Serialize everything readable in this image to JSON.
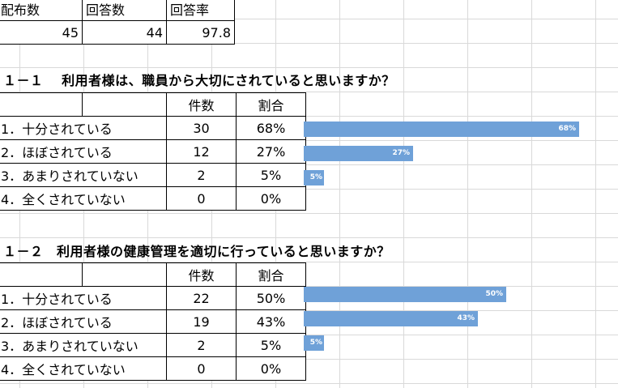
{
  "summary": {
    "headers": [
      "配布数",
      "回答数",
      "回答率"
    ],
    "values": [
      "45",
      "44",
      "97.8"
    ]
  },
  "questions": [
    {
      "title": "１－１　 利用者様は、職員から大切にされていると思いますか？",
      "col_count": "件数",
      "col_ratio": "割合",
      "rows": [
        {
          "label": "1．十分されている",
          "count": "30",
          "ratio": "68%"
        },
        {
          "label": "2．ほぼされている",
          "count": "12",
          "ratio": "27%"
        },
        {
          "label": "3．あまりされていない",
          "count": "2",
          "ratio": "5%"
        },
        {
          "label": "4．全くされていない",
          "count": "0",
          "ratio": "0%"
        }
      ]
    },
    {
      "title": "１－２　利用者様の健康管理を適切に行っていると思いますか？",
      "col_count": "件数",
      "col_ratio": "割合",
      "rows": [
        {
          "label": "1．十分されている",
          "count": "22",
          "ratio": "50%"
        },
        {
          "label": "2．ほぼされている",
          "count": "19",
          "ratio": "43%"
        },
        {
          "label": "3．あまりされていない",
          "count": "2",
          "ratio": "5%"
        },
        {
          "label": "4．全くされていない",
          "count": "0",
          "ratio": "0%"
        }
      ]
    }
  ],
  "chart_data": [
    {
      "type": "bar",
      "categories": [
        "1．十分されている",
        "2．ほぼされている",
        "3．あまりされていない",
        "4．全くされていない"
      ],
      "values": [
        68,
        27,
        5,
        0
      ],
      "data_labels": [
        "68%",
        "27%",
        "5%",
        ""
      ],
      "color": "#6fa1d8",
      "orientation": "horizontal"
    },
    {
      "type": "bar",
      "categories": [
        "1．十分されている",
        "2．ほぼされている",
        "3．あまりされていない",
        "4．全くされていない"
      ],
      "values": [
        50,
        43,
        5,
        0
      ],
      "data_labels": [
        "50%",
        "43%",
        "5%",
        ""
      ],
      "color": "#6fa1d8",
      "orientation": "horizontal"
    }
  ]
}
